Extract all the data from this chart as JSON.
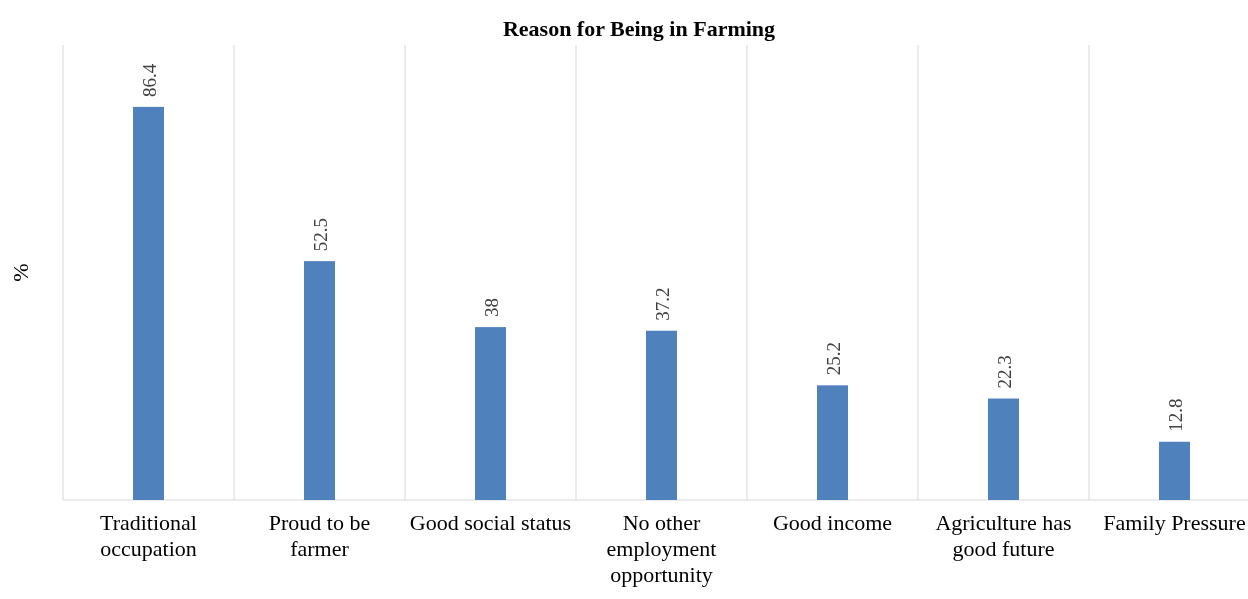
{
  "chart_data": {
    "type": "bar",
    "title": "Reason for Being in Farming",
    "ylabel": "%",
    "categories": [
      "Traditional occupation",
      "Proud to be farmer",
      "Good social status",
      "No other employment opportunity",
      "Good income",
      "Agriculture has good future",
      "Family Pressure"
    ],
    "values": [
      86.4,
      52.5,
      38,
      37.2,
      25.2,
      22.3,
      12.8
    ],
    "color": "#4f81bd",
    "ylim": [
      0,
      100
    ],
    "data_labels": true,
    "grid": "x",
    "tick_labels": "x"
  }
}
